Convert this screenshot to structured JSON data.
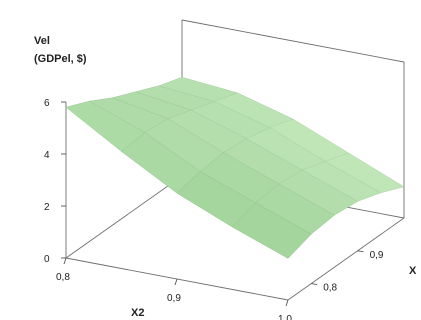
{
  "chart_data": {
    "type": "surface",
    "zlabel_line1": "Vel",
    "zlabel_line2": "(GDPel, $)",
    "xlabel": "X2",
    "ylabel": "X",
    "z_ticks": [
      "0",
      "2",
      "4",
      "6"
    ],
    "x2_ticks": [
      "0,8",
      "0,9",
      "1,0"
    ],
    "x_ticks": [
      "0,8",
      "0,9"
    ],
    "x2_range": [
      0.8,
      1.0
    ],
    "x_range": [
      0.75,
      1.0
    ],
    "z_range": [
      0,
      6
    ],
    "x2_grid": [
      0.8,
      0.85,
      0.9,
      0.95,
      1.0
    ],
    "x_grid": [
      0.75,
      0.8,
      0.85,
      0.9,
      0.95,
      1.0
    ],
    "z_values": [
      [
        5.8,
        5.4,
        4.9,
        4.5,
        4.1,
        3.8
      ],
      [
        4.5,
        4.6,
        4.5,
        4.2,
        3.9,
        3.6
      ],
      [
        3.3,
        3.5,
        3.6,
        3.5,
        3.3,
        3.0
      ],
      [
        2.4,
        2.7,
        2.8,
        2.7,
        2.4,
        2.1
      ],
      [
        1.6,
        1.9,
        2.0,
        1.9,
        1.6,
        1.2
      ]
    ],
    "surface_color": "#8fce8a",
    "grid": false
  }
}
